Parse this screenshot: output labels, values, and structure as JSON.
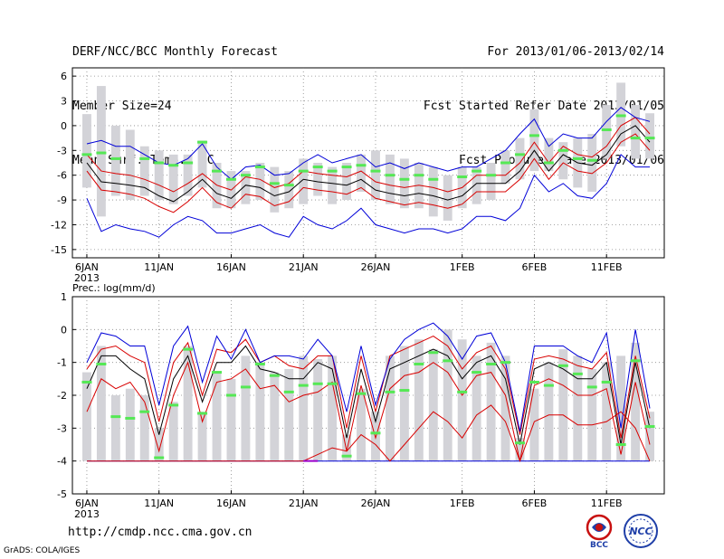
{
  "header": {
    "left": [
      "DERF/NCC/BCC Monthly Forecast",
      "Member Size=24",
      "Mean Surf. Temp.: °C"
    ],
    "right": [
      "For 2013/01/06-2013/02/14",
      "Fcst Started Refer Date 2013/01/05",
      "Fcst Produced Date 2013/01/06"
    ]
  },
  "footer": {
    "url": "http://cmdp.ncc.cma.gov.cn",
    "credit": "GrADS: COLA/IGES",
    "logo_bcc": "BCC",
    "logo_ncc": "NCC"
  },
  "colors": {
    "bar": "#d3d3d8",
    "mean": "#000000",
    "inner": "#d80000",
    "outer": "#0000d8",
    "marker": "#55e855",
    "purple": "#9a00cc",
    "grid": "#888888"
  },
  "chart_data": [
    {
      "type": "line",
      "title": "Mean Surf. Temp.: °C",
      "xlabel": "",
      "ylabel": "°C",
      "ylim": [
        -16,
        7
      ],
      "yticks": [
        6,
        3,
        0,
        -3,
        -6,
        -9,
        -12,
        -15
      ],
      "xticks": [
        {
          "day": 1,
          "label": "6JAN",
          "label2": "2013"
        },
        {
          "day": 6,
          "label": "11JAN"
        },
        {
          "day": 11,
          "label": "16JAN"
        },
        {
          "day": 16,
          "label": "21JAN"
        },
        {
          "day": 21,
          "label": "26JAN"
        },
        {
          "day": 27,
          "label": "1FEB"
        },
        {
          "day": 32,
          "label": "6FEB"
        },
        {
          "day": 37,
          "label": "11FEB"
        }
      ],
      "x": [
        1,
        2,
        3,
        4,
        5,
        6,
        7,
        8,
        9,
        10,
        11,
        12,
        13,
        14,
        15,
        16,
        17,
        18,
        19,
        20,
        21,
        22,
        23,
        24,
        25,
        26,
        27,
        28,
        29,
        30,
        31,
        32,
        33,
        34,
        35,
        36,
        37,
        38,
        39,
        40
      ],
      "bars_top": [
        1.4,
        4.8,
        0.0,
        -0.5,
        -2.5,
        -3.0,
        -3.5,
        -3.5,
        -1.8,
        -4.5,
        -5.5,
        -5.5,
        -4.5,
        -5.0,
        -5.5,
        -4.0,
        -4.5,
        -5.0,
        -4.5,
        -3.5,
        -3.0,
        -3.5,
        -4.0,
        -4.5,
        -5.0,
        -6.0,
        -5.0,
        -5.0,
        -4.5,
        -3.0,
        -1.5,
        2.0,
        -1.5,
        -2.0,
        -1.5,
        -1.0,
        2.5,
        5.2,
        2.5,
        1.5
      ],
      "bars_bottom": [
        -7.5,
        -11.0,
        -8.5,
        -9.0,
        -8.5,
        -9.0,
        -9.5,
        -8.5,
        -7.5,
        -10.0,
        -10.0,
        -9.5,
        -9.0,
        -10.5,
        -10.0,
        -9.5,
        -8.5,
        -9.5,
        -9.0,
        -8.0,
        -9.0,
        -9.5,
        -10.0,
        -10.0,
        -11.0,
        -11.5,
        -10.0,
        -9.5,
        -9.0,
        -7.0,
        -6.5,
        -5.5,
        -5.5,
        -6.5,
        -7.5,
        -8.0,
        -4.0,
        -2.5,
        -4.0,
        -4.0
      ],
      "series": [
        {
          "name": "mean",
          "role": "mean",
          "values": [
            -4.5,
            -6.8,
            -7.0,
            -7.2,
            -7.5,
            -8.5,
            -9.2,
            -8.0,
            -6.5,
            -8.2,
            -8.8,
            -7.2,
            -7.5,
            -8.5,
            -8.0,
            -6.5,
            -6.8,
            -7.0,
            -7.2,
            -6.5,
            -7.8,
            -8.2,
            -8.5,
            -8.2,
            -8.5,
            -9.0,
            -8.5,
            -7.0,
            -7.0,
            -7.0,
            -5.5,
            -3.0,
            -5.5,
            -3.5,
            -4.5,
            -4.8,
            -3.5,
            -1.0,
            0.0,
            -2.0
          ]
        },
        {
          "name": "inner-upper",
          "role": "inner",
          "values": [
            -3.5,
            -5.5,
            -5.8,
            -6.0,
            -6.5,
            -7.2,
            -8.0,
            -7.0,
            -5.8,
            -7.2,
            -7.8,
            -6.2,
            -6.5,
            -7.5,
            -7.0,
            -5.5,
            -5.8,
            -6.0,
            -6.2,
            -5.5,
            -6.8,
            -7.2,
            -7.5,
            -7.2,
            -7.5,
            -8.0,
            -7.5,
            -6.0,
            -6.0,
            -6.0,
            -4.5,
            -2.0,
            -4.5,
            -2.5,
            -3.5,
            -3.8,
            -2.5,
            0.0,
            1.0,
            -1.0
          ]
        },
        {
          "name": "inner-lower",
          "role": "inner",
          "values": [
            -5.5,
            -7.8,
            -8.0,
            -8.3,
            -8.8,
            -9.8,
            -10.5,
            -9.2,
            -7.5,
            -9.3,
            -10.0,
            -8.3,
            -8.6,
            -9.7,
            -9.2,
            -7.5,
            -7.8,
            -8.0,
            -8.3,
            -7.5,
            -8.8,
            -9.2,
            -9.6,
            -9.3,
            -9.6,
            -10.0,
            -9.5,
            -8.0,
            -8.0,
            -8.0,
            -6.5,
            -4.0,
            -6.5,
            -4.5,
            -5.5,
            -5.8,
            -4.5,
            -2.0,
            -1.0,
            -3.0
          ]
        },
        {
          "name": "outer-upper",
          "role": "outer",
          "values": [
            -2.2,
            -1.8,
            -2.5,
            -2.5,
            -3.5,
            -4.5,
            -4.8,
            -4.0,
            -2.2,
            -5.0,
            -6.5,
            -5.0,
            -4.8,
            -6.0,
            -5.8,
            -4.5,
            -3.5,
            -4.5,
            -4.0,
            -3.5,
            -5.0,
            -4.5,
            -5.2,
            -4.5,
            -5.0,
            -5.5,
            -5.0,
            -5.0,
            -4.0,
            -3.0,
            -1.0,
            0.8,
            -2.5,
            -1.0,
            -1.5,
            -1.5,
            0.5,
            2.2,
            1.0,
            0.5
          ]
        },
        {
          "name": "outer-lower",
          "role": "outer",
          "values": [
            -8.8,
            -12.8,
            -12.0,
            -12.5,
            -12.8,
            -13.5,
            -12.0,
            -11.0,
            -11.5,
            -13.0,
            -13.0,
            -12.5,
            -12.0,
            -13.0,
            -13.5,
            -11.0,
            -12.0,
            -12.5,
            -11.5,
            -10.0,
            -12.0,
            -12.5,
            -13.0,
            -12.5,
            -12.5,
            -13.0,
            -12.5,
            -11.0,
            -11.0,
            -11.5,
            -10.0,
            -6.0,
            -8.0,
            -7.0,
            -8.5,
            -8.8,
            -7.0,
            -3.5,
            -5.0,
            -5.0
          ]
        }
      ],
      "markers": [
        -3.5,
        -3.3,
        -4.0,
        null,
        -4.0,
        -4.5,
        -4.8,
        -4.5,
        -2.0,
        -5.5,
        -6.5,
        -6.0,
        -5.0,
        -7.0,
        -7.2,
        -5.5,
        -5.0,
        -5.5,
        -5.0,
        -4.8,
        -5.5,
        -6.0,
        -6.5,
        -6.0,
        -6.5,
        null,
        -6.2,
        -5.5,
        -6.0,
        -4.5,
        -3.5,
        -1.2,
        -4.5,
        -3.0,
        -4.0,
        -4.2,
        -0.5,
        1.2,
        -1.5,
        -1.5
      ]
    },
    {
      "type": "line",
      "title": "Prec.: log(mm/d)",
      "xlabel": "",
      "ylabel": "log(mm/d)",
      "ylim": [
        -5,
        1
      ],
      "yticks": [
        1,
        0,
        -1,
        -2,
        -3,
        -4,
        -5
      ],
      "xticks": [
        {
          "day": 1,
          "label": "6JAN",
          "label2": "2013"
        },
        {
          "day": 6,
          "label": "11JAN"
        },
        {
          "day": 11,
          "label": "16JAN"
        },
        {
          "day": 16,
          "label": "21JAN"
        },
        {
          "day": 21,
          "label": "26JAN"
        },
        {
          "day": 27,
          "label": "1FEB"
        },
        {
          "day": 32,
          "label": "6FEB"
        },
        {
          "day": 37,
          "label": "11FEB"
        }
      ],
      "x": [
        1,
        2,
        3,
        4,
        5,
        6,
        7,
        8,
        9,
        10,
        11,
        12,
        13,
        14,
        15,
        16,
        17,
        18,
        19,
        20,
        21,
        22,
        23,
        24,
        25,
        26,
        27,
        28,
        29,
        30,
        31,
        32,
        33,
        34,
        35,
        36,
        37,
        38,
        39,
        40
      ],
      "bars_top": [
        -1.3,
        -0.5,
        -2.0,
        -1.8,
        -2.0,
        -3.0,
        -2.2,
        -0.5,
        -2.5,
        -1.3,
        -1.5,
        -0.8,
        -1.0,
        -1.3,
        -1.2,
        -0.8,
        -0.9,
        -0.8,
        -3.2,
        -1.8,
        -2.5,
        -0.8,
        -0.5,
        -0.3,
        -0.6,
        0.0,
        -0.3,
        -0.8,
        -0.4,
        -0.8,
        -3.3,
        -1.8,
        -1.0,
        -0.6,
        -0.8,
        -1.2,
        -1.0,
        -0.8,
        -0.4,
        -2.5
      ],
      "bars_bottom": [
        -4,
        -4,
        -4,
        -4,
        -4,
        -4,
        -4,
        -4,
        -4,
        -4,
        -4,
        -4,
        -4,
        -4,
        -4,
        -4,
        -4,
        -4,
        -4,
        -4,
        -4,
        -4,
        -4,
        -4,
        -4,
        -4,
        -4,
        -4,
        -4,
        -4,
        -4,
        -4,
        -4,
        -4,
        -4,
        -4,
        -4,
        -4,
        -4,
        -4
      ],
      "series": [
        {
          "name": "mean",
          "role": "mean",
          "values": [
            -1.8,
            -0.8,
            -0.8,
            -1.2,
            -1.5,
            -3.2,
            -1.5,
            -0.8,
            -2.2,
            -1.0,
            -1.0,
            -0.5,
            -1.2,
            -1.3,
            -1.5,
            -1.5,
            -1.0,
            -1.2,
            -3.3,
            -1.2,
            -2.8,
            -1.2,
            -1.0,
            -0.8,
            -0.6,
            -0.8,
            -1.5,
            -1.0,
            -0.8,
            -1.5,
            -3.5,
            -1.2,
            -1.0,
            -1.2,
            -1.5,
            -1.5,
            -1.0,
            -3.5,
            -1.0,
            -3.0
          ]
        },
        {
          "name": "inner-upper",
          "role": "inner",
          "values": [
            -1.2,
            -0.6,
            -0.5,
            -0.8,
            -1.0,
            -2.8,
            -1.0,
            -0.4,
            -2.0,
            -0.6,
            -0.7,
            -0.3,
            -1.0,
            -0.8,
            -1.1,
            -1.2,
            -0.8,
            -0.8,
            -3.0,
            -0.8,
            -2.5,
            -0.8,
            -0.6,
            -0.4,
            -0.2,
            -0.5,
            -1.2,
            -0.7,
            -0.5,
            -1.2,
            -3.2,
            -0.9,
            -0.8,
            -0.9,
            -1.1,
            -1.2,
            -0.7,
            -3.3,
            -0.8,
            -2.7
          ]
        },
        {
          "name": "inner-lower",
          "role": "inner",
          "values": [
            -2.5,
            -1.5,
            -1.8,
            -1.6,
            -2.2,
            -3.7,
            -2.0,
            -1.0,
            -2.8,
            -1.6,
            -1.5,
            -1.2,
            -1.8,
            -1.7,
            -2.2,
            -2.0,
            -1.9,
            -1.6,
            -3.7,
            -1.7,
            -3.3,
            -1.8,
            -1.4,
            -1.3,
            -1.0,
            -1.3,
            -2.0,
            -1.4,
            -1.3,
            -2.0,
            -4.0,
            -1.7,
            -1.5,
            -1.7,
            -2.0,
            -2.0,
            -1.8,
            -3.8,
            -1.6,
            -3.5
          ]
        },
        {
          "name": "outer-upper",
          "role": "outer",
          "values": [
            -1.0,
            -0.1,
            -0.2,
            -0.5,
            -0.5,
            -2.3,
            -0.5,
            0.1,
            -1.6,
            -0.2,
            -0.9,
            0.0,
            -1.0,
            -0.8,
            -0.8,
            -0.9,
            -0.3,
            -0.8,
            -2.5,
            -0.5,
            -2.3,
            -0.9,
            -0.3,
            0.0,
            0.2,
            -0.2,
            -0.9,
            -0.2,
            -0.1,
            -1.0,
            -3.1,
            -0.5,
            -0.5,
            -0.5,
            -0.8,
            -1.0,
            -0.1,
            -3.0,
            0.0,
            -2.4
          ]
        },
        {
          "name": "outer-lower",
          "role": "outer",
          "values": [
            -4,
            -4,
            -4,
            -4,
            -4,
            -4,
            -4,
            -4,
            -4,
            -4,
            -4,
            -4,
            -4,
            -4,
            -4,
            -4,
            -4,
            -4,
            -4,
            -4,
            -4,
            -4,
            -4,
            -4,
            -4,
            -4,
            -4,
            -4,
            -4,
            -4,
            -4,
            -4,
            -4,
            -4,
            -4,
            -4,
            -4,
            -4,
            -4,
            -4
          ]
        },
        {
          "name": "outer-lower-b",
          "role": "inner",
          "values": [
            -4.0,
            -4.0,
            -4.0,
            -4.0,
            -4.0,
            -4.0,
            -4.0,
            -4.0,
            -4.0,
            -4.0,
            -4.0,
            -4.0,
            -4.0,
            -4.0,
            -4.0,
            -4.0,
            -3.8,
            -3.6,
            -3.7,
            -3.2,
            -3.5,
            -4.0,
            -3.5,
            -3.0,
            -2.5,
            -2.8,
            -3.3,
            -2.6,
            -2.3,
            -2.8,
            -4.0,
            -2.8,
            -2.6,
            -2.6,
            -2.9,
            -2.9,
            -2.8,
            -2.5,
            -3.0,
            -4.0
          ]
        }
      ],
      "markers": [
        -1.6,
        -1.05,
        -2.65,
        -2.7,
        -2.5,
        -3.9,
        -2.3,
        -0.6,
        -2.55,
        -1.3,
        -2.0,
        -1.75,
        -1.05,
        -1.4,
        -1.9,
        -1.7,
        -1.65,
        -1.65,
        -3.85,
        -1.95,
        -3.15,
        -1.9,
        -1.85,
        -1.05,
        -0.7,
        -0.95,
        -1.9,
        -1.3,
        -1.05,
        -1.0,
        -3.45,
        -1.6,
        -1.7,
        -1.1,
        -1.35,
        -1.75,
        -1.6,
        -3.5,
        -0.95,
        -2.95
      ],
      "purple_segment": {
        "from_day": 16,
        "to_day": 17,
        "value": -4
      }
    }
  ]
}
